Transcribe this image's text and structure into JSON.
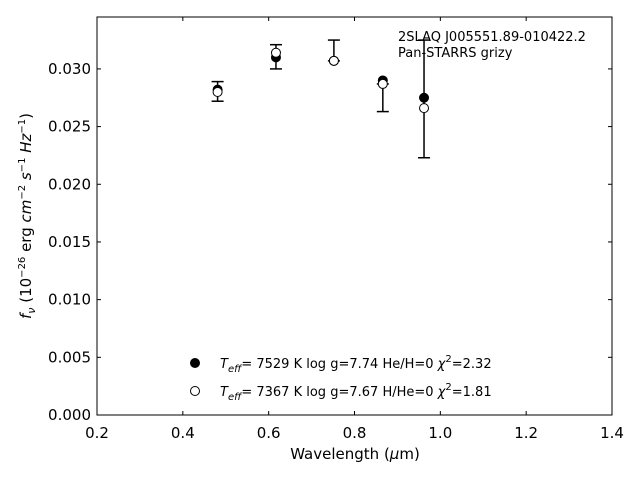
{
  "chart_data": {
    "type": "scatter",
    "xlabel_main": "Wavelength (",
    "xlabel_unit_mu": "μ",
    "xlabel_unit_rest": "m)",
    "ylabel": {
      "f": "f",
      "nu": "ν",
      "open": " (10",
      "e1": "−26",
      "erg": " erg ",
      "cm": "cm",
      "e2": "−2",
      "s": " s",
      "e3": "−1",
      "hz": " Hz",
      "e4": "−1",
      "close": ")"
    },
    "xlim": [
      0.2,
      1.4
    ],
    "ylim": [
      0.0,
      0.0345
    ],
    "xticks": [
      0.2,
      0.4,
      0.6,
      0.8,
      1.0,
      1.2,
      1.4
    ],
    "xtick_labels": [
      "0.2",
      "0.4",
      "0.6",
      "0.8",
      "1.0",
      "1.2",
      "1.4"
    ],
    "yticks": [
      0.0,
      0.005,
      0.01,
      0.015,
      0.02,
      0.025,
      0.03
    ],
    "ytick_labels": [
      "0.000",
      "0.005",
      "0.010",
      "0.015",
      "0.020",
      "0.025",
      "0.030"
    ],
    "annotation": [
      "2SLAQ J005551.89-010422.2",
      "Pan-STARRS grizy"
    ],
    "observed": {
      "x": [
        0.481,
        0.617,
        0.752,
        0.866,
        0.962
      ],
      "y": [
        0.028,
        0.0311,
        0.0307,
        0.0287,
        0.0274
      ],
      "yerr_low": [
        0.0272,
        0.03,
        0.0307,
        0.0263,
        0.0223
      ],
      "yerr_high": [
        0.0289,
        0.0321,
        0.0325,
        0.0287,
        0.0325
      ]
    },
    "series": [
      {
        "marker": "filled",
        "legend": {
          "teff": "7529",
          "logg": "7.74",
          "comp": "He/H=0",
          "chi2": "2.32"
        },
        "x": [
          0.481,
          0.617,
          0.752,
          0.866,
          0.962
        ],
        "y": [
          0.0282,
          0.031,
          0.0307,
          0.029,
          0.0275
        ]
      },
      {
        "marker": "open",
        "legend": {
          "teff": "7367",
          "logg": "7.67",
          "comp": "H/He=0",
          "chi2": "1.81"
        },
        "x": [
          0.481,
          0.617,
          0.752,
          0.866,
          0.962
        ],
        "y": [
          0.028,
          0.0314,
          0.0307,
          0.0287,
          0.0266
        ]
      }
    ],
    "legend_placement": "lower-center",
    "grid": false
  }
}
